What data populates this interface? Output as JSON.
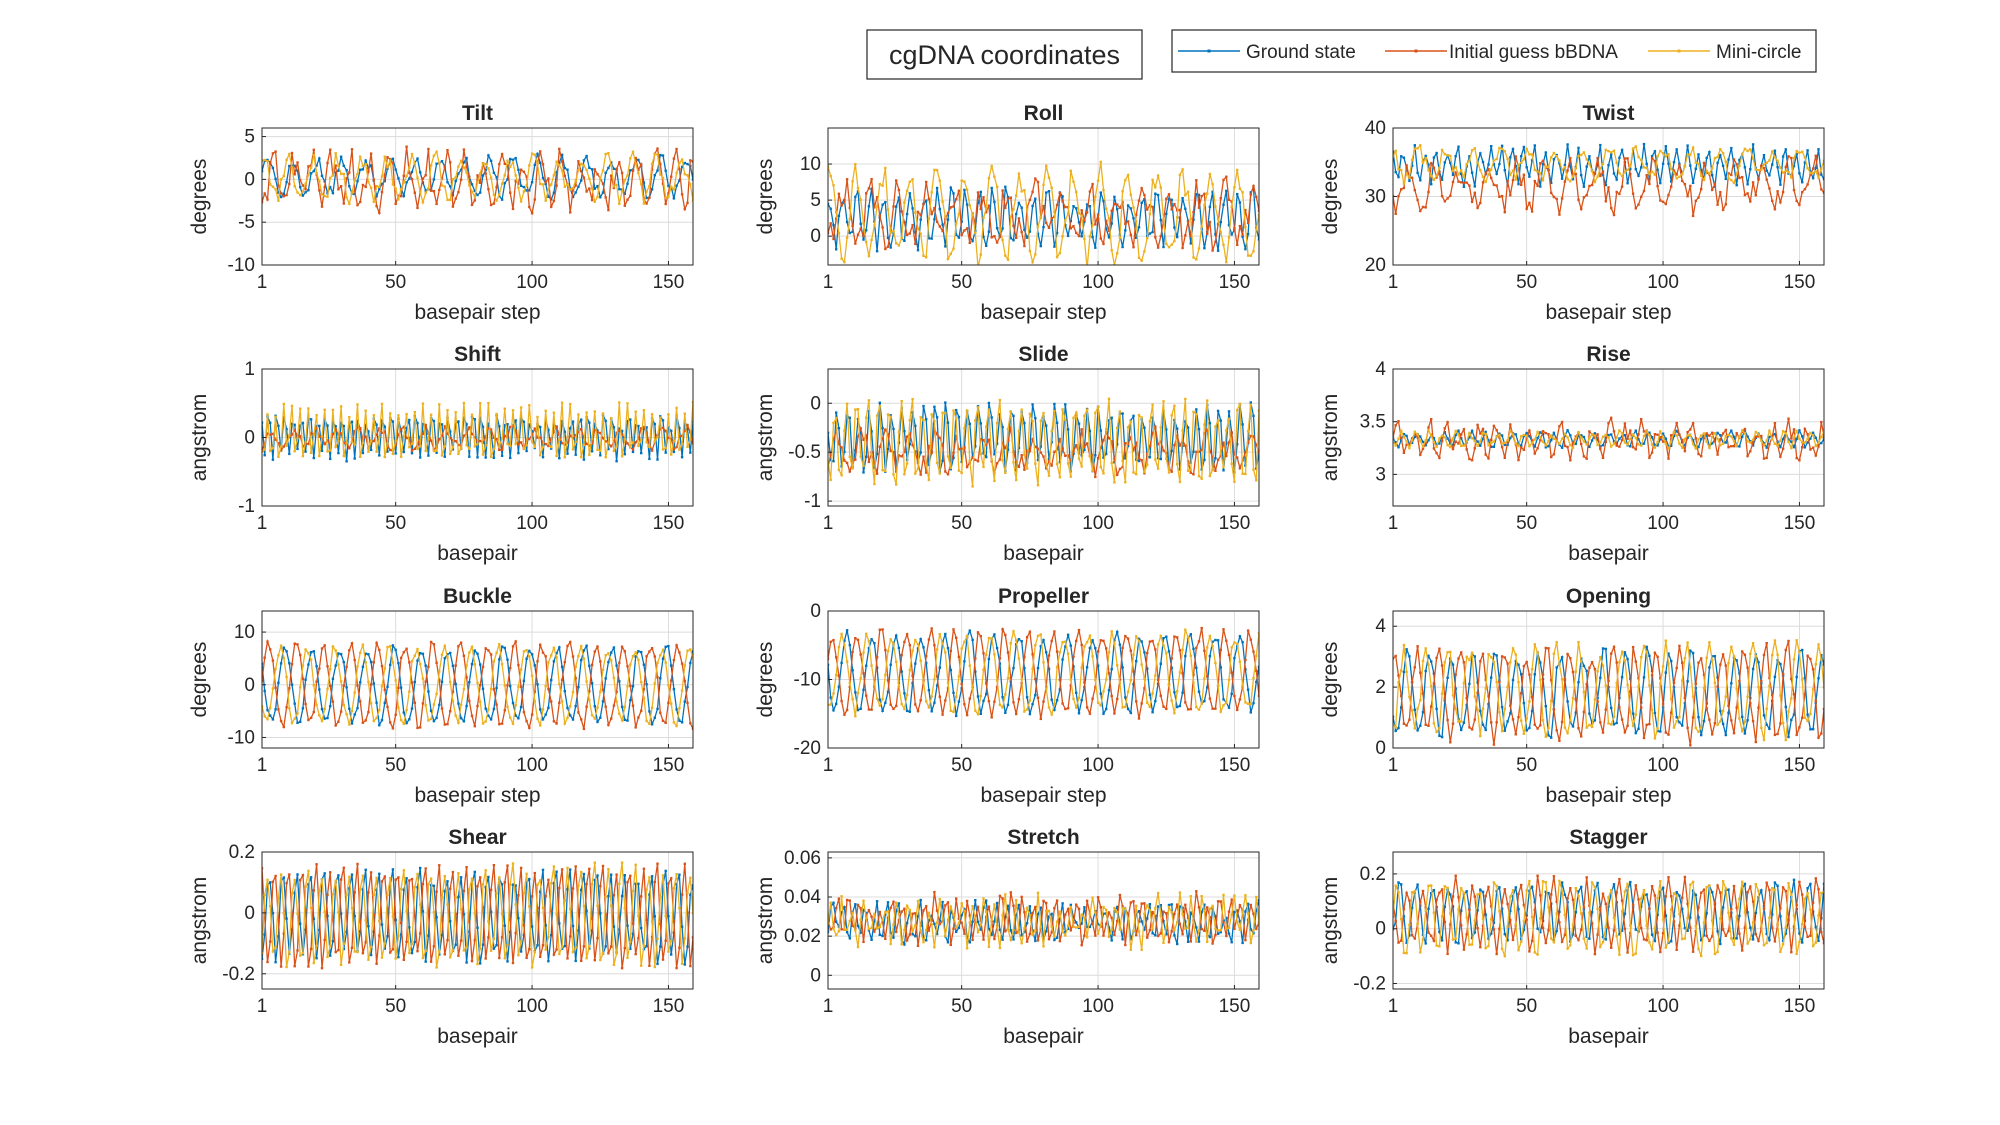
{
  "figure": {
    "suptitle": "cgDNA coordinates",
    "legend": {
      "placement": "top-right",
      "entries": [
        {
          "name": "Ground state",
          "color": "#0072BD"
        },
        {
          "name": "Initial guess bBDNA",
          "color": "#D95319"
        },
        {
          "name": "Mini-circle",
          "color": "#EDB120"
        }
      ]
    }
  },
  "chart_data": [
    {
      "type": "line",
      "title": "Tilt",
      "xlabel": "basepair step",
      "ylabel": "degrees",
      "xlim": [
        1,
        159
      ],
      "ylim": [
        -10,
        6
      ],
      "xticks": [
        1,
        50,
        100,
        150
      ],
      "yticks": [
        -10,
        -5,
        0,
        5
      ],
      "grid": true,
      "x": "basepair step index 1..159",
      "series": [
        {
          "name": "Ground state",
          "color": "#0072BD",
          "mean": 0.3,
          "amplitude": 2.0,
          "period": 9,
          "noise": 0.8
        },
        {
          "name": "Initial guess bBDNA",
          "color": "#D95319",
          "mean": 0,
          "amplitude": 2.2,
          "period": 7,
          "noise": 1.8
        },
        {
          "name": "Mini-circle",
          "color": "#EDB120",
          "mean": 0.2,
          "amplitude": 2.2,
          "period": 9,
          "noise": 0.9
        }
      ]
    },
    {
      "type": "line",
      "title": "Roll",
      "xlabel": "basepair step",
      "ylabel": "degrees",
      "xlim": [
        1,
        159
      ],
      "ylim": [
        -4,
        15
      ],
      "xticks": [
        1,
        50,
        100,
        150
      ],
      "yticks": [
        0,
        5,
        10
      ],
      "grid": true,
      "x": "basepair step index 1..159",
      "series": [
        {
          "name": "Ground state",
          "color": "#0072BD",
          "mean": 2.5,
          "amplitude": 3.5,
          "period": 5,
          "noise": 1.5
        },
        {
          "name": "Initial guess bBDNA",
          "color": "#D95319",
          "mean": 3,
          "amplitude": 3,
          "period": 10,
          "noise": 2.5
        },
        {
          "name": "Mini-circle",
          "color": "#EDB120",
          "mean": 3,
          "amplitude": 5.5,
          "period": 10,
          "noise": 2
        }
      ]
    },
    {
      "type": "line",
      "title": "Twist",
      "xlabel": "basepair step",
      "ylabel": "degrees",
      "xlim": [
        1,
        159
      ],
      "ylim": [
        20,
        40
      ],
      "xticks": [
        1,
        50,
        100,
        150
      ],
      "yticks": [
        20,
        30,
        40
      ],
      "grid": true,
      "x": "basepair step index 1..159",
      "series": [
        {
          "name": "Ground state",
          "color": "#0072BD",
          "mean": 34.5,
          "amplitude": 2.2,
          "period": 4,
          "noise": 1
        },
        {
          "name": "Initial guess bBDNA",
          "color": "#D95319",
          "mean": 31.5,
          "amplitude": 2.5,
          "period": 10,
          "noise": 2
        },
        {
          "name": "Mini-circle",
          "color": "#EDB120",
          "mean": 34.8,
          "amplitude": 2,
          "period": 10,
          "noise": 1
        }
      ]
    },
    {
      "type": "line",
      "title": "Shift",
      "xlabel": "basepair",
      "ylabel": "angstrom",
      "xlim": [
        1,
        159
      ],
      "ylim": [
        -1,
        1
      ],
      "xticks": [
        1,
        50,
        100,
        150
      ],
      "yticks": [
        -1,
        0,
        1
      ],
      "grid": true,
      "x": "basepair index 1..159",
      "series": [
        {
          "name": "Ground state",
          "color": "#0072BD",
          "mean": 0.05,
          "amplitude": 0.3,
          "period": 3,
          "noise": 0.1
        },
        {
          "name": "Initial guess bBDNA",
          "color": "#D95319",
          "mean": 0,
          "amplitude": 0.12,
          "period": 8,
          "noise": 0.08
        },
        {
          "name": "Mini-circle",
          "color": "#EDB120",
          "mean": 0.05,
          "amplitude": 0.35,
          "period": 3,
          "noise": 0.12
        }
      ]
    },
    {
      "type": "line",
      "title": "Slide",
      "xlabel": "basepair",
      "ylabel": "angstrom",
      "xlim": [
        1,
        159
      ],
      "ylim": [
        -1.05,
        0.35
      ],
      "xticks": [
        1,
        50,
        100,
        150
      ],
      "yticks": [
        -1,
        -0.5,
        0
      ],
      "grid": true,
      "x": "basepair index 1..159",
      "series": [
        {
          "name": "Ground state",
          "color": "#0072BD",
          "mean": -0.35,
          "amplitude": 0.3,
          "period": 4,
          "noise": 0.1
        },
        {
          "name": "Initial guess bBDNA",
          "color": "#D95319",
          "mean": -0.5,
          "amplitude": 0.15,
          "period": 9,
          "noise": 0.12
        },
        {
          "name": "Mini-circle",
          "color": "#EDB120",
          "mean": -0.4,
          "amplitude": 0.4,
          "period": 4,
          "noise": 0.12
        }
      ]
    },
    {
      "type": "line",
      "title": "Rise",
      "xlabel": "basepair",
      "ylabel": "angstrom",
      "xlim": [
        1,
        159
      ],
      "ylim": [
        2.7,
        4
      ],
      "xticks": [
        1,
        50,
        100,
        150
      ],
      "yticks": [
        3,
        3.5,
        4
      ],
      "grid": true,
      "x": "basepair index 1..159",
      "series": [
        {
          "name": "Ground state",
          "color": "#0072BD",
          "mean": 3.33,
          "amplitude": 0.06,
          "period": 5,
          "noise": 0.03
        },
        {
          "name": "Initial guess bBDNA",
          "color": "#D95319",
          "mean": 3.33,
          "amplitude": 0.12,
          "period": 6,
          "noise": 0.1
        },
        {
          "name": "Mini-circle",
          "color": "#EDB120",
          "mean": 3.33,
          "amplitude": 0.06,
          "period": 5,
          "noise": 0.03
        }
      ]
    },
    {
      "type": "line",
      "title": "Buckle",
      "xlabel": "basepair step",
      "ylabel": "degrees",
      "xlim": [
        1,
        159
      ],
      "ylim": [
        -12,
        14
      ],
      "xticks": [
        1,
        50,
        100,
        150
      ],
      "yticks": [
        -10,
        0,
        10
      ],
      "grid": true,
      "x": "basepair step index 1..159",
      "series": [
        {
          "name": "Ground state",
          "color": "#0072BD",
          "mean": 0,
          "amplitude": 7,
          "period": 10,
          "noise": 1
        },
        {
          "name": "Initial guess bBDNA",
          "color": "#D95319",
          "mean": 0,
          "amplitude": 7.5,
          "period": 10,
          "noise": 1.2
        },
        {
          "name": "Mini-circle",
          "color": "#EDB120",
          "mean": 0,
          "amplitude": 7,
          "period": 10,
          "noise": 1
        }
      ]
    },
    {
      "type": "line",
      "title": "Propeller",
      "xlabel": "basepair step",
      "ylabel": "degrees",
      "xlim": [
        1,
        159
      ],
      "ylim": [
        -20,
        0
      ],
      "xticks": [
        1,
        50,
        100,
        150
      ],
      "yticks": [
        -20,
        -10,
        0
      ],
      "grid": true,
      "x": "basepair step index 1..159",
      "series": [
        {
          "name": "Ground state",
          "color": "#0072BD",
          "mean": -9,
          "amplitude": 5.5,
          "period": 9,
          "noise": 1
        },
        {
          "name": "Initial guess bBDNA",
          "color": "#D95319",
          "mean": -9,
          "amplitude": 5.8,
          "period": 9,
          "noise": 1
        },
        {
          "name": "Mini-circle",
          "color": "#EDB120",
          "mean": -9,
          "amplitude": 5.5,
          "period": 9,
          "noise": 1
        }
      ]
    },
    {
      "type": "line",
      "title": "Opening",
      "xlabel": "basepair step",
      "ylabel": "degrees",
      "xlim": [
        1,
        159
      ],
      "ylim": [
        0,
        4.5
      ],
      "xticks": [
        1,
        50,
        100,
        150
      ],
      "yticks": [
        0,
        2,
        4
      ],
      "grid": true,
      "x": "basepair step index 1..159",
      "series": [
        {
          "name": "Ground state",
          "color": "#0072BD",
          "mean": 1.8,
          "amplitude": 1.3,
          "period": 8,
          "noise": 0.3
        },
        {
          "name": "Initial guess bBDNA",
          "color": "#D95319",
          "mean": 1.8,
          "amplitude": 1.4,
          "period": 8,
          "noise": 0.35
        },
        {
          "name": "Mini-circle",
          "color": "#EDB120",
          "mean": 1.9,
          "amplitude": 1.3,
          "period": 8,
          "noise": 0.35
        }
      ]
    },
    {
      "type": "line",
      "title": "Shear",
      "xlabel": "basepair",
      "ylabel": "angstrom",
      "xlim": [
        1,
        159
      ],
      "ylim": [
        -0.25,
        0.2
      ],
      "xticks": [
        1,
        50,
        100,
        150
      ],
      "yticks": [
        -0.2,
        0,
        0.2
      ],
      "grid": true,
      "x": "basepair index 1..159",
      "series": [
        {
          "name": "Ground state",
          "color": "#0072BD",
          "mean": -0.01,
          "amplitude": 0.14,
          "period": 5,
          "noise": 0.03
        },
        {
          "name": "Initial guess bBDNA",
          "color": "#D95319",
          "mean": -0.01,
          "amplitude": 0.15,
          "period": 5,
          "noise": 0.03
        },
        {
          "name": "Mini-circle",
          "color": "#EDB120",
          "mean": -0.01,
          "amplitude": 0.15,
          "period": 5,
          "noise": 0.03
        }
      ]
    },
    {
      "type": "line",
      "title": "Stretch",
      "xlabel": "basepair",
      "ylabel": "angstrom",
      "xlim": [
        1,
        159
      ],
      "ylim": [
        -0.007,
        0.063
      ],
      "xticks": [
        1,
        50,
        100,
        150
      ],
      "yticks": [
        0,
        0.02,
        0.04,
        0.06
      ],
      "grid": true,
      "x": "basepair index 1..159",
      "series": [
        {
          "name": "Ground state",
          "color": "#0072BD",
          "mean": 0.027,
          "amplitude": 0.008,
          "period": 4,
          "noise": 0.005
        },
        {
          "name": "Initial guess bBDNA",
          "color": "#D95319",
          "mean": 0.029,
          "amplitude": 0.009,
          "period": 4,
          "noise": 0.006
        },
        {
          "name": "Mini-circle",
          "color": "#EDB120",
          "mean": 0.028,
          "amplitude": 0.009,
          "period": 4,
          "noise": 0.006
        }
      ]
    },
    {
      "type": "line",
      "title": "Stagger",
      "xlabel": "basepair",
      "ylabel": "angstrom",
      "xlim": [
        1,
        159
      ],
      "ylim": [
        -0.22,
        0.28
      ],
      "xticks": [
        1,
        50,
        100,
        150
      ],
      "yticks": [
        -0.2,
        0,
        0.2
      ],
      "grid": true,
      "x": "basepair index 1..159",
      "series": [
        {
          "name": "Ground state",
          "color": "#0072BD",
          "mean": 0.06,
          "amplitude": 0.1,
          "period": 6,
          "noise": 0.03
        },
        {
          "name": "Initial guess bBDNA",
          "color": "#D95319",
          "mean": 0.05,
          "amplitude": 0.11,
          "period": 6,
          "noise": 0.035
        },
        {
          "name": "Mini-circle",
          "color": "#EDB120",
          "mean": 0.04,
          "amplitude": 0.12,
          "period": 6,
          "noise": 0.035
        }
      ]
    }
  ]
}
